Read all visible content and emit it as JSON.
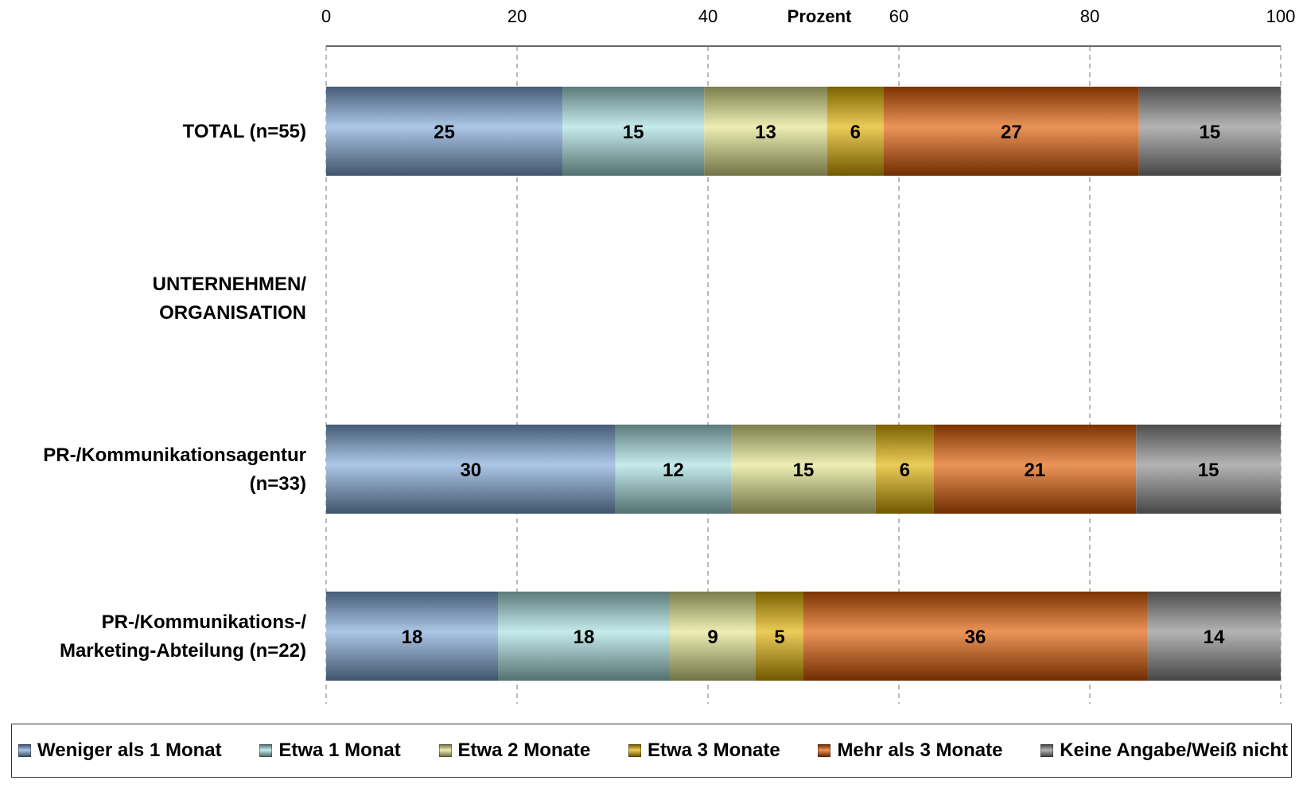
{
  "chart_data": {
    "type": "bar",
    "orientation": "horizontal",
    "stacked": true,
    "xlabel": "Prozent",
    "xlim": [
      0,
      100
    ],
    "xticks": [
      "0",
      "20",
      "40",
      "60",
      "80",
      "100"
    ],
    "grid": true,
    "legend_position": "bottom",
    "categories": [
      [
        "TOTAL (n=55)"
      ],
      [
        "UNTERNEHMEN/",
        "ORGANISATION"
      ],
      [
        "PR-/Kommunikationsagentur",
        "(n=33)"
      ],
      [
        "PR-/Kommunikations-/",
        "Marketing-Abteilung (n=22)"
      ]
    ],
    "series": [
      {
        "name": "Weniger als 1 Monat",
        "color": "#7fa8d8",
        "values": [
          25,
          null,
          30,
          18
        ]
      },
      {
        "name": "Etwa 1 Monat",
        "color": "#a8e0e0",
        "values": [
          15,
          null,
          12,
          18
        ]
      },
      {
        "name": "Etwa 2 Monate",
        "color": "#e4e48c",
        "values": [
          13,
          null,
          15,
          9
        ]
      },
      {
        "name": "Etwa 3 Monate",
        "color": "#e0b000",
        "values": [
          6,
          null,
          6,
          5
        ]
      },
      {
        "name": "Mehr als 3 Monate",
        "color": "#e05a00",
        "values": [
          27,
          null,
          21,
          36
        ]
      },
      {
        "name": "Keine Angabe/Weiß nicht",
        "color": "#8c8c8c",
        "values": [
          15,
          null,
          15,
          14
        ]
      }
    ]
  }
}
